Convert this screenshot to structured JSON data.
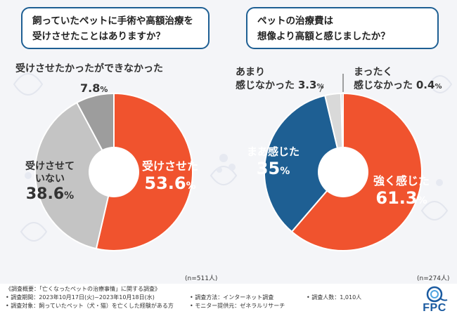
{
  "colors": {
    "red": "#f0532e",
    "gray": "#c4c4c4",
    "gray_dark": "#9d9d9d",
    "navy": "#1e5f93",
    "lightgray": "#d9d9d9",
    "bg": "#f4f5f8"
  },
  "chart_data": [
    {
      "type": "pie",
      "title": "飼っていたペットに手術や高額治療を受けさせたことはありますか？",
      "title_lines": [
        "飼っていたペットに手術や高額治療を",
        "受けさせたことはありますか？"
      ],
      "slices": [
        {
          "label": "受けさせた",
          "value": 53.6,
          "color": "#f0532e"
        },
        {
          "label": "受けさせていない",
          "label_lines": [
            "受けさせて",
            "いない"
          ],
          "value": 38.6,
          "color": "#c4c4c4"
        },
        {
          "label": "受けさせたかったができなかった",
          "value": 7.8,
          "color": "#9d9d9d"
        }
      ],
      "unit": "%",
      "n_label": "(n=511人)"
    },
    {
      "type": "pie",
      "title": "ペットの治療費は想像より高額と感じましたか？",
      "title_lines": [
        "ペットの治療費は",
        "想像より高額と感じましたか？"
      ],
      "slices": [
        {
          "label": "強く感じた",
          "value": 61.3,
          "color": "#f0532e"
        },
        {
          "label": "まあ感じた",
          "value": 35.0,
          "color": "#1e5f93"
        },
        {
          "label": "あまり感じなかった",
          "label_lines": [
            "あまり",
            "感じなかった"
          ],
          "value": 3.3,
          "color": "#d9d9d9"
        },
        {
          "label": "まったく感じなかった",
          "label_lines": [
            "まったく",
            "感じなかった"
          ],
          "value": 0.4,
          "color": "#b5b5b5"
        }
      ],
      "unit": "%",
      "n_label": "(n=274人)"
    }
  ],
  "footer": {
    "survey_title": "《調査概要：「亡くなったペットの治療事情」に関する調査》",
    "period": "• 調査期間：2023年10月17日(火)~2023年10月18日(水)",
    "target": "• 調査対象：飼っていたペット（犬・猫）を亡くした経験がある方",
    "method": "• 調査方法：インターネット調査",
    "provider": "• モニター提供元：ゼネラルリサーチ",
    "count": "• 調査人数：1,010人"
  },
  "logo": {
    "text": "FPC"
  }
}
